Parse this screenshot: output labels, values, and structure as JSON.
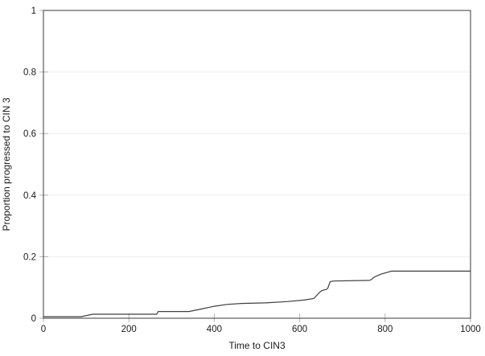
{
  "chart_data": {
    "type": "line",
    "title": "",
    "xlabel": "Time to CIN3",
    "ylabel": "Proportion progressed to CIN 3",
    "xlim": [
      0,
      1000
    ],
    "ylim": [
      0,
      1
    ],
    "x_ticks": [
      0,
      200,
      400,
      600,
      800,
      1000
    ],
    "x_tick_labels": [
      "0",
      "200",
      "400",
      "600",
      "800",
      "1000"
    ],
    "y_ticks": [
      0,
      0.2,
      0.4,
      0.6,
      0.8,
      1
    ],
    "y_tick_labels": [
      "0",
      "0.2",
      "0.4",
      "0.6",
      "0.8",
      "1"
    ],
    "grid": "horizontal-only-faint",
    "legend": "none",
    "series": [
      {
        "name": "proportion-progressed-step-curve",
        "points": [
          [
            0,
            0.005
          ],
          [
            88,
            0.005
          ],
          [
            115,
            0.013
          ],
          [
            265,
            0.013
          ],
          [
            269,
            0.022
          ],
          [
            341,
            0.022
          ],
          [
            370,
            0.03
          ],
          [
            400,
            0.039
          ],
          [
            430,
            0.045
          ],
          [
            463,
            0.048
          ],
          [
            520,
            0.05
          ],
          [
            570,
            0.054
          ],
          [
            610,
            0.059
          ],
          [
            633,
            0.064
          ],
          [
            648,
            0.086
          ],
          [
            652,
            0.09
          ],
          [
            663,
            0.094
          ],
          [
            666,
            0.098
          ],
          [
            671,
            0.118
          ],
          [
            678,
            0.121
          ],
          [
            764,
            0.123
          ],
          [
            769,
            0.127
          ],
          [
            772,
            0.131
          ],
          [
            778,
            0.136
          ],
          [
            790,
            0.143
          ],
          [
            815,
            0.153
          ],
          [
            1000,
            0.153
          ]
        ]
      }
    ],
    "colors": {
      "background": "#ffffff",
      "frame": "#595959",
      "curve": "#3f3f3f",
      "gridline": "#ededed",
      "tick": "#b3b3b3",
      "text": "#1a1a1a"
    }
  }
}
